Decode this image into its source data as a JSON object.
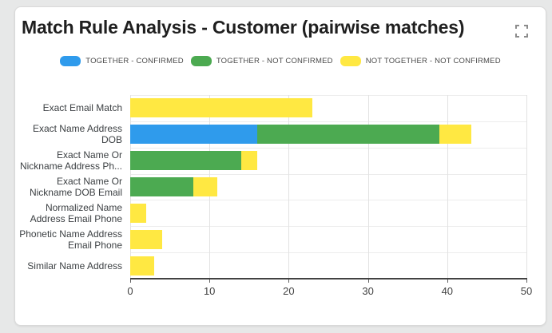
{
  "header": {
    "title": "Match Rule Analysis - Customer (pairwise matches)"
  },
  "chart_data": {
    "type": "bar",
    "orientation": "horizontal",
    "stacked": true,
    "title": "Match Rule Analysis - Customer (pairwise matches)",
    "categories": [
      "Exact Email Match",
      "Exact Name Address\nDOB",
      "Exact Name Or\nNickname Address Ph...",
      "Exact Name Or\nNickname DOB Email",
      "Normalized Name\nAddress Email Phone",
      "Phonetic Name Address\nEmail Phone",
      "Similar Name Address"
    ],
    "series": [
      {
        "name": "TOGETHER - CONFIRMED",
        "color": "#2f9bec",
        "values": [
          0,
          16,
          0,
          0,
          0,
          0,
          0
        ]
      },
      {
        "name": "TOGETHER - NOT CONFIRMED",
        "color": "#4caa51",
        "values": [
          0,
          23,
          14,
          8,
          0,
          0,
          0
        ]
      },
      {
        "name": "NOT TOGETHER - NOT CONFIRMED",
        "color": "#ffe842",
        "values": [
          23,
          4,
          2,
          3,
          2,
          4,
          3
        ]
      }
    ],
    "xlabel": "",
    "ylabel": "",
    "xlim": [
      0,
      50
    ],
    "xticks": [
      0,
      10,
      20,
      30,
      40,
      50
    ],
    "grid": true,
    "legend_position": "top"
  }
}
